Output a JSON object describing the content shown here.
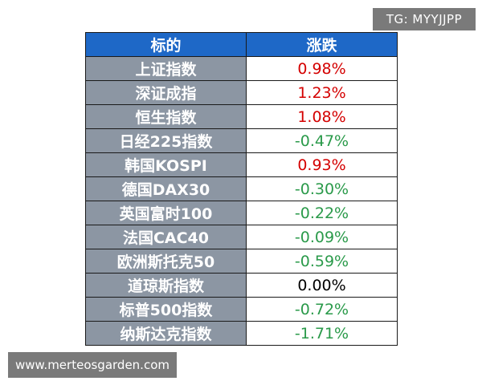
{
  "watermark": {
    "tg": "TG: MYYJJPP",
    "site": "www.merteosgarden.com"
  },
  "table": {
    "headers": [
      "标的",
      "涨跌"
    ],
    "rows": [
      {
        "name": "上证指数",
        "change": "0.98%",
        "direction": "up"
      },
      {
        "name": "深证成指",
        "change": "1.23%",
        "direction": "up"
      },
      {
        "name": "恒生指数",
        "change": "1.08%",
        "direction": "up"
      },
      {
        "name": "日经225指数",
        "change": "-0.47%",
        "direction": "down"
      },
      {
        "name": "韩国KOSPI",
        "change": "0.93%",
        "direction": "up"
      },
      {
        "name": "德国DAX30",
        "change": "-0.30%",
        "direction": "down"
      },
      {
        "name": "英国富时100",
        "change": "-0.22%",
        "direction": "down"
      },
      {
        "name": "法国CAC40",
        "change": "-0.09%",
        "direction": "down"
      },
      {
        "name": "欧洲斯托克50",
        "change": "-0.59%",
        "direction": "down"
      },
      {
        "name": "道琼斯指数",
        "change": "0.00%",
        "direction": "flat"
      },
      {
        "name": "标普500指数",
        "change": "-0.72%",
        "direction": "down"
      },
      {
        "name": "纳斯达克指数",
        "change": "-1.71%",
        "direction": "down"
      }
    ]
  },
  "colors": {
    "header_bg": "#1e68c7",
    "name_bg": "#8c96a3",
    "up": "#d40000",
    "down": "#2a9a4a",
    "flat": "#000000"
  }
}
